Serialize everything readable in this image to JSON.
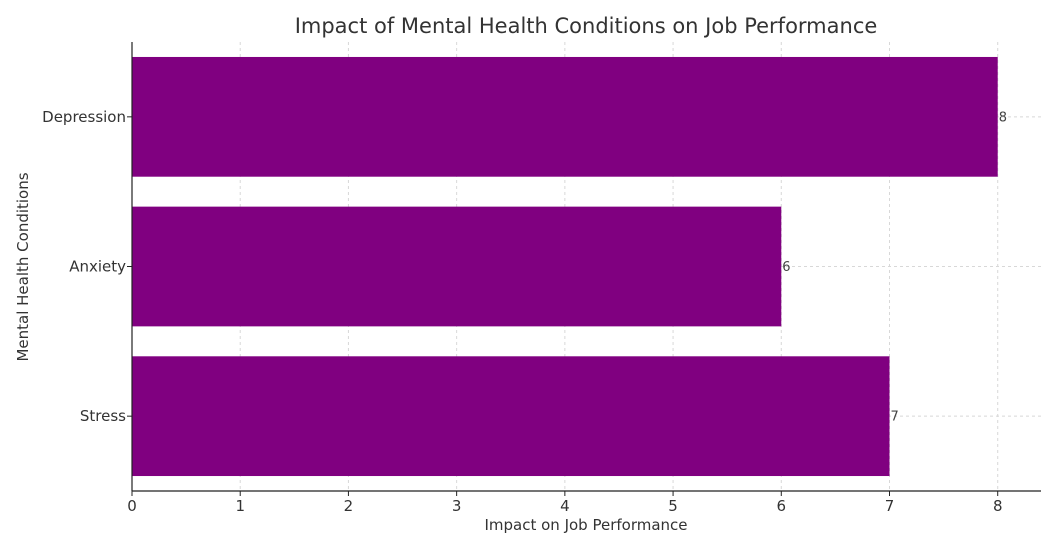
{
  "chart_data": {
    "type": "bar",
    "orientation": "horizontal",
    "title": "Impact of Mental Health Conditions on Job Performance",
    "xlabel": "Impact on Job Performance",
    "ylabel": "Mental Health Conditions",
    "categories": [
      "Stress",
      "Anxiety",
      "Depression"
    ],
    "values": [
      7,
      6,
      8
    ],
    "data_labels": [
      "7",
      "6",
      "8"
    ],
    "xlim": [
      0,
      8.4
    ],
    "xticks": [
      0,
      1,
      2,
      3,
      4,
      5,
      6,
      7,
      8
    ],
    "xtick_labels": [
      "0",
      "1",
      "2",
      "3",
      "4",
      "5",
      "6",
      "7",
      "8"
    ],
    "grid": true,
    "bar_color": "#800080"
  }
}
